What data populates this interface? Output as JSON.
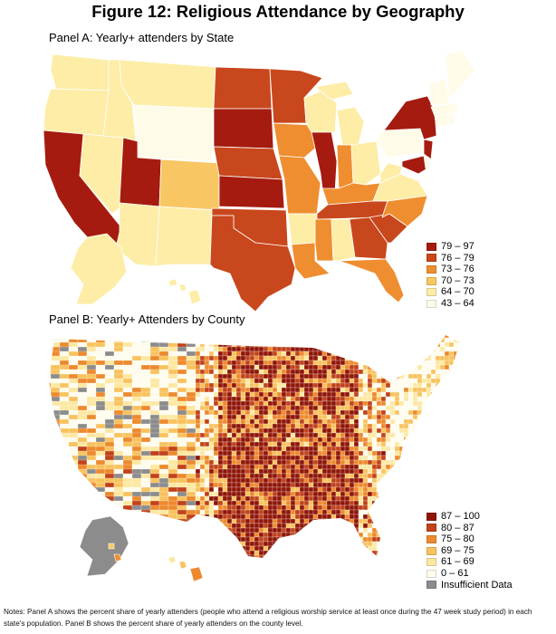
{
  "title": "Figure 12: Religious Attendance by Geography",
  "panel_a": {
    "label": "Panel A: Yearly+ attenders by State",
    "legend": [
      {
        "range": "79 – 97",
        "color": "#a51b0f"
      },
      {
        "range": "76 – 79",
        "color": "#c9471c"
      },
      {
        "range": "73 – 76",
        "color": "#ef8e30"
      },
      {
        "range": "70 – 73",
        "color": "#f8c763"
      },
      {
        "range": "64 – 70",
        "color": "#fdeda6"
      },
      {
        "range": "43 – 64",
        "color": "#fffbe9"
      }
    ]
  },
  "panel_b": {
    "label": "Panel B: Yearly+ Attenders by County",
    "legend": [
      {
        "range": "87 – 100",
        "color": "#8f1508"
      },
      {
        "range": "80 – 87",
        "color": "#c1421b"
      },
      {
        "range": "75 – 80",
        "color": "#ed8a2e"
      },
      {
        "range": "69 – 75",
        "color": "#f8c25e"
      },
      {
        "range": "61 – 69",
        "color": "#fde8a2"
      },
      {
        "range": "0 – 61",
        "color": "#fffcee"
      },
      {
        "range": "Insufficient Data",
        "color": "#8c8c8c"
      }
    ]
  },
  "notes": "Notes: Panel A shows the percent share of yearly attenders (people who attend a religious worship service at least once during the 47 week study period) in each state's population. Panel B shows the percent share of yearly attenders on the county level."
}
